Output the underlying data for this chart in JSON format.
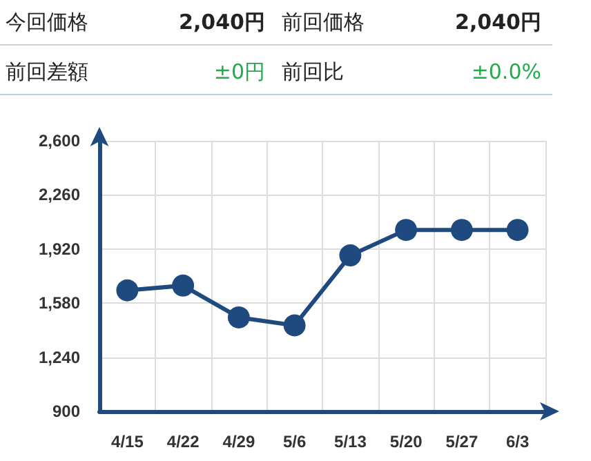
{
  "chart_data": {
    "type": "line",
    "annotations": [
      "今回価格",
      "2,040円",
      "前回価格",
      "2,040円",
      "前回差額",
      "±0円",
      "前回比",
      "±0.0%"
    ],
    "categories": [
      "4/15",
      "4/22",
      "4/29",
      "5/6",
      "5/13",
      "5/20",
      "5/27",
      "6/3"
    ],
    "series": [
      {
        "color": "#1f4a80",
        "values": [
          1660,
          1690,
          1490,
          1440,
          1880,
          2040,
          2040,
          2040
        ]
      }
    ],
    "ylim": [
      900,
      2600
    ],
    "yticks": [
      {
        "value": 900,
        "label": "900"
      },
      {
        "value": 1240,
        "label": "1,240"
      },
      {
        "value": 1580,
        "label": "1,580"
      },
      {
        "value": 1920,
        "label": "1,920"
      },
      {
        "value": 2260,
        "label": "2,260"
      },
      {
        "value": 2600,
        "label": "2,600"
      }
    ],
    "grid": true,
    "marker": "circle",
    "line_style": "solid"
  }
}
